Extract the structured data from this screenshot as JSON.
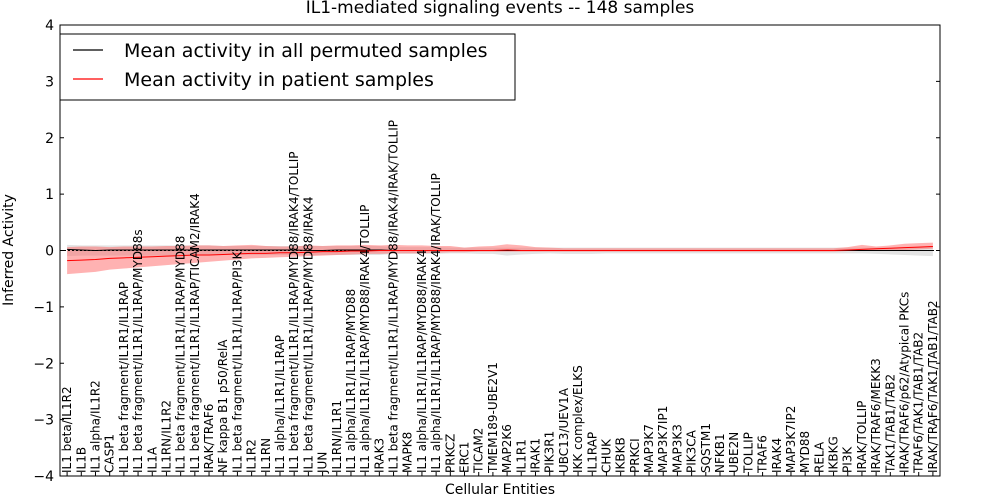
{
  "chart_data": {
    "type": "line",
    "title": "IL1-mediated signaling events -- 148 samples",
    "xlabel": "Cellular Entities",
    "ylabel": "Inferred Activity",
    "ylim": [
      -4,
      4
    ],
    "yticks": [
      -4,
      -3,
      -2,
      -1,
      0,
      1,
      2,
      3,
      4
    ],
    "ytick_labels": [
      "−4",
      "−3",
      "−2",
      "−1",
      "0",
      "1",
      "2",
      "3",
      "4"
    ],
    "legend_position": "top-left",
    "categories": [
      "IL1 beta/IL1R2",
      "IL1B",
      "IL1 alpha/IL1R2",
      "CASP1",
      "IL1 beta fragment/IL1R1/IL1RAP",
      "IL1 beta fragment/IL1R1/IL1RAP/MYD88s",
      "IL1A",
      "IL1RN/IL1R2",
      "IL1 beta fragment/IL1R1/IL1RAP/MYD88",
      "IL1 beta fragment/IL1R1/IL1RAP/TICAM2/IRAK4",
      "IRAK/TRAF6",
      "NF kappa B1 p50/RelA",
      "IL1 beta fragment/IL1R1/IL1RAP/PI3K",
      "IL1R2",
      "IL1RN",
      "IL1 alpha/IL1R1/IL1RAP",
      "IL1 beta fragment/IL1R1/IL1RAP/MYD88/IRAK4/TOLLIP",
      "IL1 beta fragment/IL1R1/IL1RAP/MYD88/IRAK4",
      "JUN",
      "IL1RN/IL1R1",
      "IL1 alpha/IL1R1/IL1RAP/MYD88",
      "IL1 alpha/IL1R1/IL1RAP/MYD88/IRAK4/TOLLIP",
      "IRAK3",
      "IL1 beta fragment/IL1R1/IL1RAP/MYD88/IRAK4/IRAK/TOLLIP",
      "MAPK8",
      "IL1 alpha/IL1R1/IL1RAP/MYD88/IRAK4",
      "IL1 alpha/IL1R1/IL1RAP/MYD88/IRAK4/IRAK/TOLLIP",
      "PRKCZ",
      "ERC1",
      "TICAM2",
      "TMEM189-UBE2V1",
      "MAP2K6",
      "IL1R1",
      "IRAK1",
      "PIK3R1",
      "UBC13/UEV1A",
      "IKK complex/ELKS",
      "IL1RAP",
      "CHUK",
      "IKBKB",
      "PRKCI",
      "MAP3K7",
      "MAP3K7IP1",
      "MAP3K3",
      "PIK3CA",
      "SQSTM1",
      "NFKB1",
      "UBE2N",
      "TOLLIP",
      "TRAF6",
      "IRAK4",
      "MAP3K7IP2",
      "MYD88",
      "RELA",
      "IKBKG",
      "PI3K",
      "IRAK/TOLLIP",
      "IRAK/TRAF6/MEKK3",
      "TAK1/TAB1/TAB2",
      "IRAK/TRAF6/p62/Atypical PKCs",
      "TRAF6/TAK1/TAB1/TAB2",
      "IRAK/TRAF6/TAK1/TAB1/TAB2"
    ],
    "series": [
      {
        "name": "Mean activity in all permuted samples",
        "color": "#000000",
        "values": [
          0.02,
          0.01,
          0.0,
          0.01,
          0.01,
          0.01,
          0.01,
          0.01,
          0.01,
          0.01,
          0.01,
          0.01,
          0.01,
          0.01,
          0.01,
          0.01,
          0.01,
          0.0,
          0.0,
          0.01,
          0.01,
          0.01,
          0.01,
          0.0,
          0.0,
          0.0,
          0.0,
          0.0,
          0.0,
          0.0,
          0.0,
          0.0,
          0.0,
          0.0,
          0.0,
          0.0,
          0.0,
          0.0,
          0.0,
          0.0,
          0.0,
          0.0,
          0.0,
          0.0,
          0.0,
          0.0,
          0.0,
          0.0,
          0.0,
          0.0,
          0.0,
          0.0,
          0.0,
          0.0,
          0.0,
          0.0,
          0.0,
          0.0,
          0.0,
          0.0,
          0.0,
          0.0
        ],
        "band_low": [
          -0.1,
          -0.09,
          -0.09,
          -0.09,
          -0.09,
          -0.09,
          -0.09,
          -0.09,
          -0.09,
          -0.09,
          -0.09,
          -0.08,
          -0.08,
          -0.08,
          -0.08,
          -0.08,
          -0.08,
          -0.08,
          -0.08,
          -0.08,
          -0.08,
          -0.08,
          -0.08,
          -0.06,
          -0.06,
          -0.06,
          -0.06,
          -0.05,
          -0.05,
          -0.06,
          -0.06,
          -0.09,
          -0.07,
          -0.06,
          -0.05,
          -0.06,
          -0.06,
          -0.06,
          -0.05,
          -0.05,
          -0.05,
          -0.05,
          -0.05,
          -0.05,
          -0.05,
          -0.05,
          -0.05,
          -0.05,
          -0.05,
          -0.05,
          -0.05,
          -0.05,
          -0.05,
          -0.05,
          -0.05,
          -0.05,
          -0.05,
          -0.06,
          -0.07,
          -0.08,
          -0.09,
          -0.1
        ],
        "band_high": [
          0.1,
          0.09,
          0.09,
          0.09,
          0.09,
          0.09,
          0.09,
          0.09,
          0.09,
          0.09,
          0.09,
          0.08,
          0.08,
          0.08,
          0.08,
          0.08,
          0.08,
          0.08,
          0.08,
          0.08,
          0.08,
          0.08,
          0.08,
          0.06,
          0.06,
          0.06,
          0.06,
          0.05,
          0.05,
          0.05,
          0.05,
          0.05,
          0.05,
          0.05,
          0.05,
          0.05,
          0.05,
          0.05,
          0.05,
          0.05,
          0.05,
          0.05,
          0.05,
          0.05,
          0.05,
          0.05,
          0.05,
          0.05,
          0.05,
          0.05,
          0.05,
          0.05,
          0.05,
          0.05,
          0.05,
          0.05,
          0.05,
          0.05,
          0.05,
          0.05,
          0.06,
          0.07
        ]
      },
      {
        "name": "Mean activity in patient samples",
        "color": "#ff0000",
        "values": [
          -0.18,
          -0.17,
          -0.16,
          -0.14,
          -0.13,
          -0.12,
          -0.11,
          -0.1,
          -0.09,
          -0.08,
          -0.08,
          -0.07,
          -0.06,
          -0.05,
          -0.05,
          -0.04,
          -0.04,
          -0.03,
          -0.02,
          -0.02,
          -0.01,
          -0.01,
          0.0,
          0.0,
          0.0,
          0.0,
          0.0,
          0.0,
          0.0,
          0.0,
          0.0,
          0.01,
          0.0,
          0.0,
          0.0,
          0.0,
          0.0,
          0.0,
          0.0,
          0.0,
          0.0,
          0.0,
          0.0,
          0.0,
          0.0,
          0.0,
          0.0,
          0.0,
          0.0,
          0.0,
          0.0,
          0.0,
          0.0,
          0.0,
          0.0,
          0.01,
          0.02,
          0.03,
          0.04,
          0.05,
          0.06,
          0.07
        ],
        "band_low": [
          -0.42,
          -0.4,
          -0.38,
          -0.34,
          -0.32,
          -0.3,
          -0.28,
          -0.26,
          -0.24,
          -0.22,
          -0.2,
          -0.18,
          -0.16,
          -0.14,
          -0.13,
          -0.12,
          -0.11,
          -0.1,
          -0.09,
          -0.08,
          -0.07,
          -0.06,
          -0.06,
          -0.05,
          -0.05,
          -0.05,
          -0.04,
          -0.03,
          -0.03,
          -0.02,
          -0.02,
          -0.02,
          -0.02,
          -0.02,
          -0.02,
          -0.02,
          -0.02,
          -0.02,
          -0.02,
          -0.02,
          -0.02,
          -0.02,
          -0.02,
          -0.02,
          -0.02,
          -0.02,
          -0.02,
          -0.02,
          -0.02,
          -0.02,
          -0.02,
          -0.02,
          -0.02,
          -0.02,
          -0.02,
          -0.01,
          0.0,
          0.0,
          0.01,
          0.01,
          0.02,
          0.03
        ],
        "band_high": [
          0.06,
          0.07,
          0.07,
          0.06,
          0.07,
          0.07,
          0.07,
          0.08,
          0.08,
          0.09,
          0.09,
          0.08,
          0.09,
          0.1,
          0.08,
          0.07,
          0.07,
          0.09,
          0.08,
          0.09,
          0.09,
          0.1,
          0.09,
          0.1,
          0.09,
          0.09,
          0.08,
          0.08,
          0.05,
          0.07,
          0.08,
          0.11,
          0.09,
          0.06,
          0.05,
          0.04,
          0.04,
          0.04,
          0.04,
          0.04,
          0.04,
          0.04,
          0.04,
          0.04,
          0.04,
          0.04,
          0.04,
          0.04,
          0.04,
          0.04,
          0.04,
          0.04,
          0.04,
          0.04,
          0.04,
          0.06,
          0.1,
          0.07,
          0.09,
          0.12,
          0.13,
          0.14
        ]
      }
    ]
  },
  "colors": {
    "permuted_band": "#c8c8c8",
    "patient_band": "#ff6666"
  }
}
